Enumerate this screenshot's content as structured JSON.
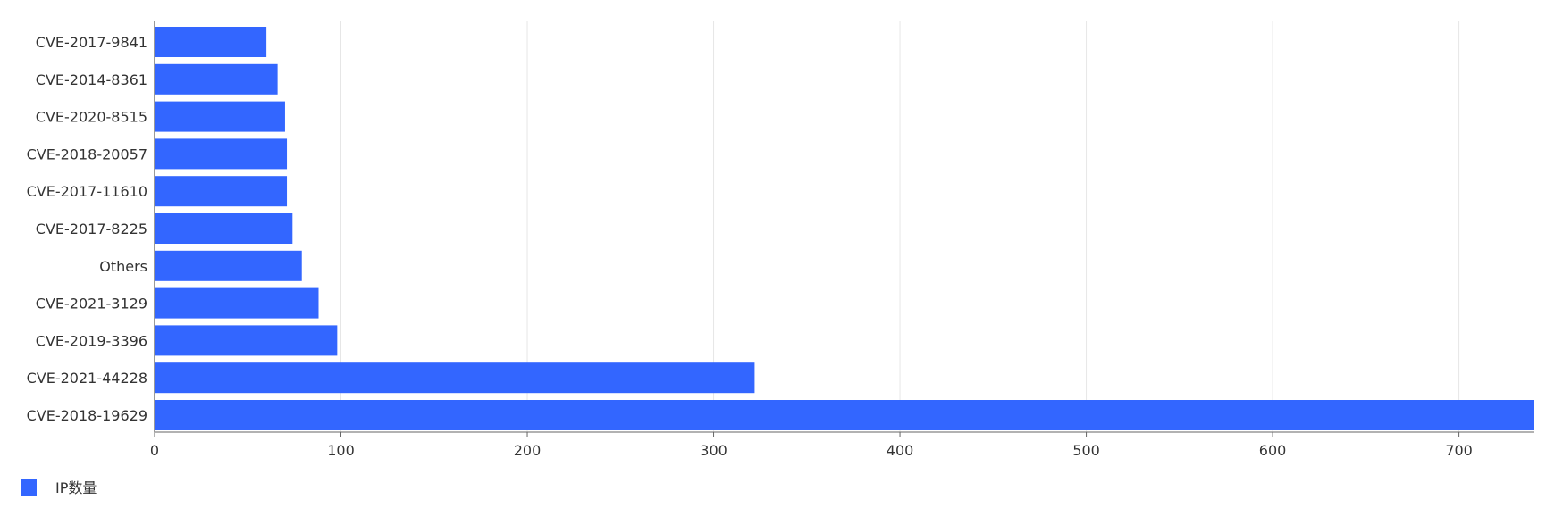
{
  "chart_data": {
    "type": "bar",
    "orientation": "horizontal",
    "categories": [
      "CVE-2017-9841",
      "CVE-2014-8361",
      "CVE-2020-8515",
      "CVE-2018-20057",
      "CVE-2017-11610",
      "CVE-2017-8225",
      "Others",
      "CVE-2021-3129",
      "CVE-2019-3396",
      "CVE-2021-44228",
      "CVE-2018-19629"
    ],
    "series": [
      {
        "name": "IP数量",
        "color": "#3366ff",
        "values": [
          60,
          66,
          70,
          71,
          71,
          74,
          79,
          88,
          98,
          322,
          740
        ]
      }
    ],
    "xlim": [
      0,
      740
    ],
    "xticks": [
      0,
      100,
      200,
      300,
      400,
      500,
      600,
      700
    ],
    "grid": true,
    "legend_placement": "bottom-left"
  }
}
